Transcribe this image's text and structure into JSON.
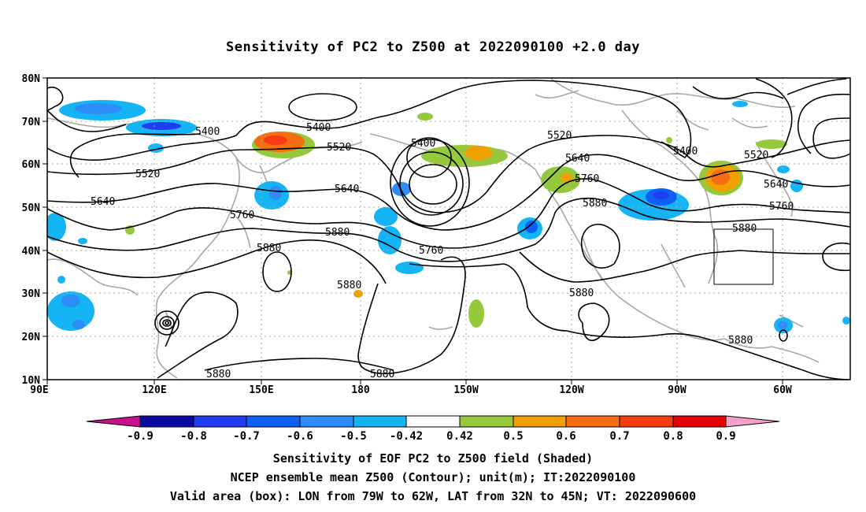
{
  "title": "Sensitivity of PC2 to Z500 at 2022090100 +2.0 day",
  "lat_labels": [
    "80N",
    "70N",
    "60N",
    "50N",
    "40N",
    "30N",
    "20N",
    "10N"
  ],
  "lon_labels": [
    "90E",
    "120E",
    "150E",
    "180",
    "150W",
    "120W",
    "90W",
    "60W"
  ],
  "contour_labels": [
    "5400",
    "5400",
    "5400",
    "5400",
    "5520",
    "5520",
    "5520",
    "5520",
    "5640",
    "5640",
    "5640",
    "5640",
    "5760",
    "5760",
    "5760",
    "5760",
    "5880",
    "5880",
    "5880",
    "5880",
    "5880",
    "5880",
    "5880",
    "5880",
    "5880"
  ],
  "colorbar": {
    "labels": [
      "-0.9",
      "-0.8",
      "-0.7",
      "-0.6",
      "-0.5",
      "-0.42",
      "0.42",
      "0.5",
      "0.6",
      "0.7",
      "0.8",
      "0.9"
    ],
    "colors": [
      "#c80f8c",
      "#0a0aa0",
      "#1e3cf0",
      "#0f5ff5",
      "#2d8cf5",
      "#14b4f5",
      "#ffffff",
      "#96c83c",
      "#f0a000",
      "#f56e14",
      "#f53c14",
      "#e60000",
      "#f5a0c8"
    ]
  },
  "box": {
    "label": "Valid area (box)",
    "lon": [
      "79W",
      "62W"
    ],
    "lat": [
      "32N",
      "45N"
    ]
  },
  "footer": {
    "line1": "Sensitivity of EOF PC2 to Z500 field (Shaded)",
    "line2": "NCEP ensemble mean Z500 (Contour); unit(m); IT:2022090100",
    "line3": "Valid area (box): LON from 79W to 62W, LAT from 32N to 45N; VT: 2022090600"
  }
}
